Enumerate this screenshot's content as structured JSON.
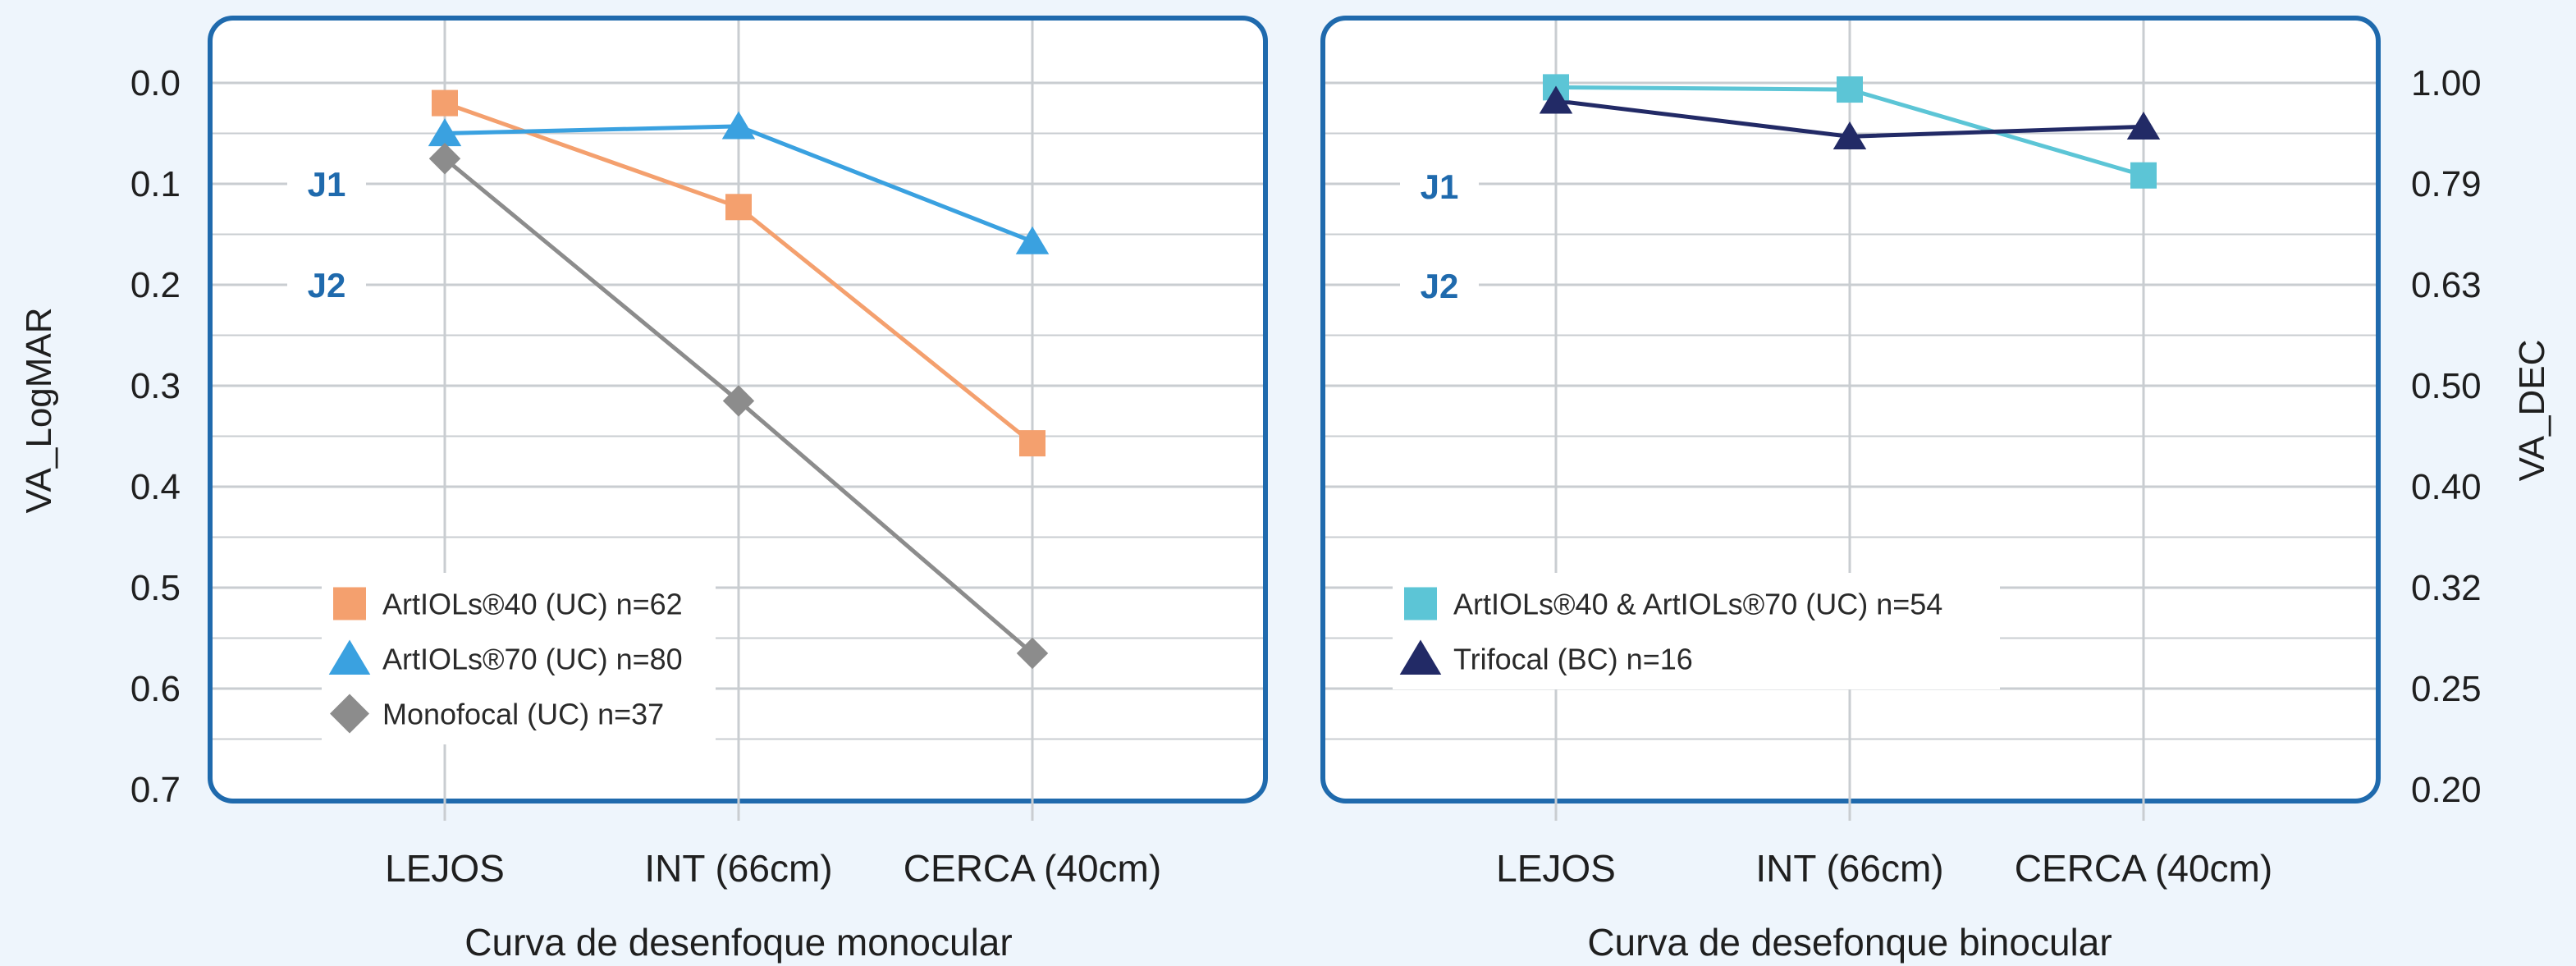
{
  "colors": {
    "background": "#eef5fc",
    "panel_border": "#1f6aad",
    "grid": "#c9cdd1",
    "j_label": "#1f6aad"
  },
  "chart_data": [
    {
      "type": "line",
      "xlabel": "Curva de desenfoque monocular",
      "ylabel": "VA_LogMAR",
      "categories": [
        "LEJOS",
        "INT (66cm)",
        "CERCA (40cm)"
      ],
      "y_ticks": [
        "0.0",
        "0.1",
        "0.2",
        "0.3",
        "0.4",
        "0.5",
        "0.6",
        "0.7"
      ],
      "ylim": [
        0.0,
        0.7
      ],
      "y_inverted": true,
      "grid": true,
      "annotations": [
        {
          "text": "J1",
          "y": 0.1
        },
        {
          "text": "J2",
          "y": 0.2
        }
      ],
      "legend_position": "bottom-left",
      "series": [
        {
          "name": "ArtIOLs®40 (UC) n=62",
          "values": [
            0.02,
            0.123,
            0.357
          ],
          "color": "#f4a06e",
          "marker": "square"
        },
        {
          "name": "ArtIOLs®70 (UC) n=80",
          "values": [
            0.05,
            0.043,
            0.157
          ],
          "color": "#3aa1e0",
          "marker": "triangle"
        },
        {
          "name": "Monofocal (UC) n=37",
          "values": [
            0.075,
            0.315,
            0.565
          ],
          "color": "#8c8c8c",
          "marker": "diamond"
        }
      ]
    },
    {
      "type": "line",
      "xlabel": "Curva de desefonque binocular",
      "ylabel": "VA_DEC",
      "categories": [
        "LEJOS",
        "INT (66cm)",
        "CERCA (40cm)"
      ],
      "y_ticks": [
        "1.00",
        "0.79",
        "0.63",
        "0.50",
        "0.40",
        "0.32",
        "0.25",
        "0.20"
      ],
      "ylim": [
        1.0,
        0.2
      ],
      "y_scale": "log",
      "grid": true,
      "annotations": [
        {
          "text": "J1",
          "y": 0.79
        },
        {
          "text": "J2",
          "y": 0.63
        }
      ],
      "legend_position": "bottom-left",
      "series": [
        {
          "name": "ArtIOLs®40 & ArtIOLs®70 (UC) n=54",
          "values": [
            0.99,
            0.985,
            0.81
          ],
          "color": "#5cc5d6",
          "marker": "square"
        },
        {
          "name": "Trifocal (BC) n=16",
          "values": [
            0.96,
            0.885,
            0.905
          ],
          "color": "#222a66",
          "marker": "triangle"
        }
      ]
    }
  ]
}
